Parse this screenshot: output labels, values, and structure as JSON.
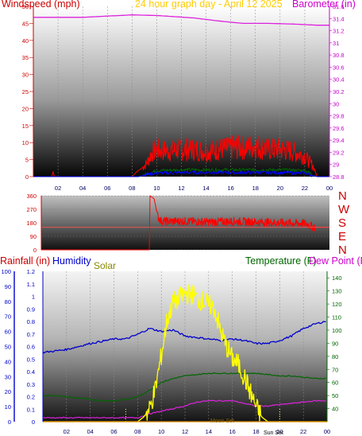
{
  "title": "24 hour graph day - April 12 2025",
  "chart_data": [
    {
      "type": "line",
      "left_label": "Windspeed (mph)",
      "right_label": "Barometer (in)",
      "x_ticks": [
        "02",
        "04",
        "06",
        "08",
        "10",
        "12",
        "14",
        "16",
        "18",
        "20",
        "22",
        "00"
      ],
      "y_left_ticks": [
        0,
        5,
        10,
        15,
        20,
        25,
        30,
        35,
        40,
        45,
        50
      ],
      "y_left_range": [
        0,
        50
      ],
      "y_right_ticks": [
        28.8,
        29,
        29.2,
        29.4,
        29.6,
        29.8,
        30,
        30.2,
        30.4,
        30.6,
        30.8,
        31,
        31.2,
        31.4,
        31.6
      ],
      "y_right_range": [
        28.8,
        31.6
      ],
      "series": [
        {
          "key": "gust",
          "color": "#ff0000",
          "x": [
            0,
            1.5,
            1.6,
            1.7,
            8,
            8.4,
            8.8,
            9.2,
            9.6,
            10,
            11,
            12,
            13,
            14,
            15,
            16,
            17,
            18,
            19,
            20,
            21,
            22,
            22.7,
            23,
            24
          ],
          "values": [
            0,
            0,
            1.5,
            0,
            0,
            1.5,
            2.5,
            4,
            7,
            8,
            7.5,
            8,
            8,
            7.5,
            8,
            8.5,
            8.5,
            9,
            8,
            8,
            7.5,
            6,
            3,
            0,
            0
          ]
        },
        {
          "key": "average",
          "color": "#006600",
          "x": [
            0,
            8.5,
            9,
            10,
            12,
            14,
            16,
            18,
            20,
            22,
            23,
            24
          ],
          "values": [
            0,
            0,
            0.5,
            1.8,
            2,
            2,
            2,
            2,
            2,
            1.8,
            0,
            0
          ]
        },
        {
          "key": "wind",
          "color": "#0000ff",
          "x": [
            0,
            8.5,
            9,
            10,
            12,
            14,
            16,
            18,
            20,
            22,
            23,
            24
          ],
          "values": [
            0,
            0,
            0.5,
            1,
            1.2,
            1.2,
            1.2,
            1.2,
            1.2,
            1,
            0,
            0
          ]
        },
        {
          "key": "pressure",
          "color": "#dd22dd",
          "axis": "right",
          "x": [
            0,
            4,
            8,
            10,
            13,
            15,
            17,
            19,
            21,
            23,
            24
          ],
          "values": [
            31.42,
            31.42,
            31.46,
            31.45,
            31.41,
            31.36,
            31.32,
            31.32,
            31.31,
            31.29,
            31.29
          ]
        }
      ]
    },
    {
      "type": "line",
      "y_ticks": [
        0,
        90,
        180,
        270,
        360
      ],
      "y_range": [
        0,
        360
      ],
      "direction_labels": [
        "N",
        "W",
        "S",
        "E",
        "N"
      ],
      "series": [
        {
          "key": "direction",
          "color": "#ff0000",
          "x": [
            0,
            9,
            9.05,
            9.4,
            9.7,
            10,
            11,
            12,
            14,
            16,
            18,
            20,
            22,
            22.7,
            24
          ],
          "values": [
            0,
            0,
            360,
            340,
            220,
            190,
            190,
            190,
            185,
            190,
            185,
            180,
            175,
            150,
            150
          ]
        },
        {
          "key": "ref",
          "color": "#ff5555",
          "x": [
            0,
            24
          ],
          "values": [
            150,
            150
          ]
        }
      ]
    },
    {
      "type": "line",
      "left_labels": [
        "Rainfall (in)",
        "Humidity",
        "Solar"
      ],
      "right_labels": [
        "Temperature (F)",
        "Dew Point (F)"
      ],
      "x_ticks": [
        "02",
        "04",
        "06",
        "08",
        "10",
        "12",
        "14",
        "16",
        "18",
        "20",
        "22",
        "00"
      ],
      "y_humidity_ticks": [
        0,
        10,
        20,
        30,
        40,
        50,
        60,
        70,
        80,
        90,
        100
      ],
      "y_rain_ticks": [
        0,
        0.1,
        0.2,
        0.3,
        0.4,
        0.5,
        0.6,
        0.7,
        0.8,
        0.9,
        1,
        1.1,
        1.2
      ],
      "y_temp_ticks": [
        40,
        50,
        60,
        70,
        80,
        90,
        100,
        110,
        120,
        130,
        140
      ],
      "y_temp_range": [
        30,
        145
      ],
      "y_humidity_range": [
        0,
        100
      ],
      "annotations": [
        "Moon Set",
        "Sun Set"
      ],
      "series": [
        {
          "key": "humidity",
          "color": "#0000cc",
          "x": [
            0,
            2,
            4,
            6,
            7,
            8,
            9,
            10,
            11,
            12,
            13,
            14,
            15,
            16,
            17,
            18,
            19,
            20,
            21,
            22,
            23,
            24
          ],
          "values": [
            46,
            48,
            52,
            55,
            55,
            58,
            62,
            60,
            61,
            57,
            56,
            55,
            54,
            55,
            54,
            52,
            52,
            54,
            57,
            62,
            65,
            67
          ]
        },
        {
          "key": "temperature",
          "color": "#006600",
          "x": [
            0,
            1,
            2,
            3,
            4,
            5,
            6,
            7,
            8,
            9,
            10,
            11,
            12,
            13,
            14,
            15,
            16,
            17,
            18,
            19,
            20,
            21,
            22,
            23,
            24
          ],
          "values": [
            50,
            50,
            49,
            48,
            47,
            46,
            46,
            47,
            49,
            54,
            60,
            63,
            65,
            66,
            67,
            67,
            67,
            67,
            67,
            66,
            65,
            65,
            64,
            63,
            63
          ]
        },
        {
          "key": "dew_point",
          "color": "#dd22dd",
          "x": [
            0,
            6,
            8,
            9,
            10,
            11,
            12,
            13,
            14,
            15,
            16,
            17,
            18,
            19,
            20,
            21,
            22,
            23,
            24
          ],
          "values": [
            33,
            33,
            33,
            36,
            38,
            40,
            42,
            45,
            46,
            46,
            46,
            44,
            42,
            42,
            43,
            44,
            45,
            46,
            46
          ]
        },
        {
          "key": "solar",
          "color": "#ffff00",
          "x": [
            0,
            8,
            8.5,
            9,
            9.5,
            10,
            10.5,
            11,
            11.5,
            12,
            12.5,
            13,
            13.5,
            14,
            14.5,
            15,
            15.5,
            16,
            16.5,
            17,
            17.5,
            18,
            18.5,
            19,
            24
          ],
          "values": [
            0,
            0,
            3,
            8,
            22,
            44,
            68,
            79,
            82,
            85,
            85,
            82,
            80,
            78,
            75,
            60,
            50,
            42,
            38,
            30,
            20,
            10,
            3,
            0,
            0
          ]
        },
        {
          "key": "rainfall",
          "color": "#dd8800",
          "x": [
            0,
            24
          ],
          "values": [
            0,
            0
          ]
        }
      ]
    }
  ]
}
